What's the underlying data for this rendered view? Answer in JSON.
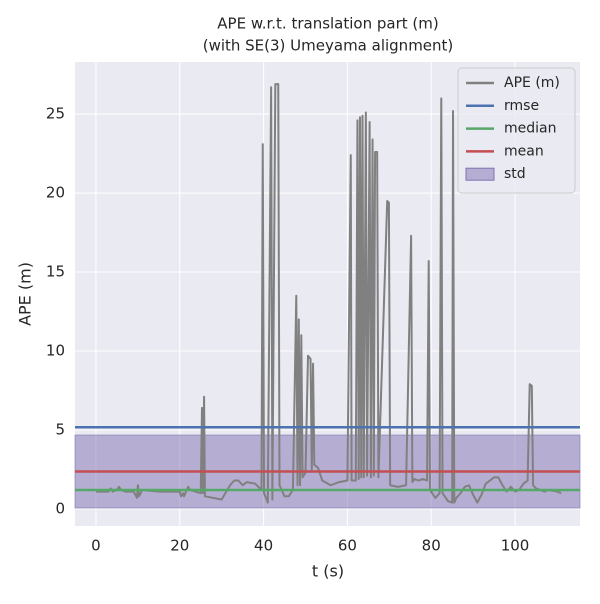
{
  "chart_data": {
    "type": "line",
    "title": [
      "APE w.r.t. translation part (m)",
      "(with SE(3) Umeyama alignment)"
    ],
    "xlabel": "t (s)",
    "ylabel": "APE (m)",
    "xlim": [
      -5,
      115.5
    ],
    "ylim": [
      -1.08,
      28.3
    ],
    "xticks": [
      0,
      20,
      40,
      60,
      80,
      100
    ],
    "yticks": [
      0,
      5,
      10,
      15,
      20,
      25
    ],
    "grid": true,
    "legend": "upper right",
    "series": [
      {
        "name": "APE (m)",
        "color": "#808080",
        "x": [
          0,
          3,
          3.5,
          4,
          5,
          5.5,
          6,
          7,
          9,
          9.8,
          10,
          10.3,
          11,
          15,
          20,
          20.3,
          20.8,
          21,
          21.5,
          22,
          22.5,
          25,
          25.3,
          25.5,
          25.8,
          26,
          30,
          32,
          33,
          34,
          35,
          36,
          38,
          39.5,
          39.8,
          40.1,
          41,
          41.8,
          42.1,
          42.8,
          43.5,
          43.8,
          45,
          46,
          47,
          47.8,
          48.1,
          48.4,
          48.7,
          49,
          49.3,
          50,
          50.6,
          51.2,
          51.5,
          51.8,
          52.1,
          53,
          54,
          56,
          58,
          60,
          60.8,
          61,
          62,
          62.4,
          62.7,
          63,
          63.3,
          63.6,
          63.9,
          64.4,
          64.7,
          65.3,
          65.6,
          66,
          66.3,
          66.6,
          67.1,
          67.4,
          69.5,
          69.9,
          70.2,
          72,
          74,
          75.2,
          75.5,
          76,
          77,
          78,
          79,
          79.4,
          79.7,
          81,
          82,
          82.4,
          82.7,
          84,
          85,
          85.2,
          85.5,
          86,
          87,
          88,
          89,
          90,
          91,
          92,
          93,
          94,
          95,
          96,
          97,
          98,
          99,
          100,
          101,
          102,
          103,
          103.5,
          104,
          104.3,
          105,
          107,
          108,
          110,
          111
        ],
        "values": [
          1.1,
          1.1,
          1.3,
          1.1,
          1.2,
          1.4,
          1.2,
          1.1,
          1.1,
          0.7,
          1.5,
          0.8,
          1.2,
          1.1,
          1.1,
          0.8,
          1.0,
          0.8,
          1.1,
          1.4,
          1.2,
          1.0,
          6.4,
          1.0,
          7.1,
          0.8,
          0.6,
          1.5,
          1.8,
          1.8,
          1.5,
          1.7,
          1.6,
          1.2,
          23.1,
          1.0,
          0.4,
          26.7,
          0.6,
          26.9,
          26.9,
          1.5,
          0.8,
          0.8,
          1.2,
          13.5,
          1.5,
          12.0,
          1.5,
          11.0,
          2.0,
          2.3,
          9.7,
          9.5,
          2.5,
          9.2,
          2.8,
          2.6,
          1.8,
          1.5,
          1.7,
          1.8,
          22.4,
          1.8,
          1.8,
          24.6,
          1.9,
          24.8,
          2.0,
          24.9,
          2.0,
          25.1,
          2.1,
          24.5,
          2.0,
          23.4,
          2.1,
          22.6,
          22.6,
          2.0,
          19.5,
          19.4,
          1.5,
          1.4,
          1.5,
          17.3,
          1.7,
          1.9,
          1.8,
          1.9,
          1.8,
          15.7,
          1.2,
          0.7,
          1.0,
          26.0,
          1.0,
          0.5,
          0.4,
          25.2,
          0.4,
          0.7,
          1.0,
          1.4,
          1.5,
          0.9,
          0.4,
          0.9,
          1.6,
          1.8,
          2.0,
          2.0,
          1.5,
          1.1,
          1.4,
          1.1,
          1.2,
          1.6,
          1.8,
          7.9,
          7.8,
          1.5,
          1.3,
          1.1,
          1.2,
          1.1,
          1.0
        ]
      }
    ],
    "hlines": [
      {
        "name": "rmse",
        "color": "#4c72b0",
        "value": 5.17
      },
      {
        "name": "median",
        "color": "#55a868",
        "value": 1.2
      },
      {
        "name": "mean",
        "color": "#c44e52",
        "value": 2.37
      }
    ],
    "std": {
      "name": "std",
      "color": "#8172b2",
      "value": 2.31
    }
  }
}
